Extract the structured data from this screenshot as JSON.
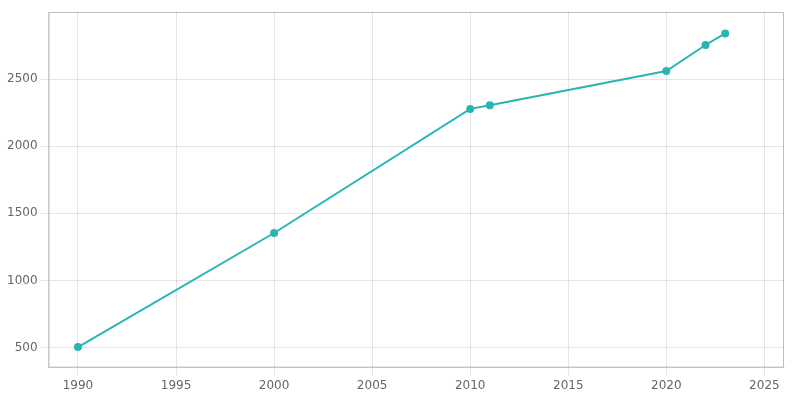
{
  "chart_data": {
    "type": "line",
    "x": [
      1990,
      2000,
      2010,
      2011,
      2020,
      2022,
      2023
    ],
    "values": [
      503,
      1353,
      2278,
      2305,
      2560,
      2754,
      2840
    ],
    "color": "#2ab5b5",
    "marker": "circle",
    "xlim": [
      1988.5,
      2026
    ],
    "ylim": [
      350,
      3000
    ],
    "xticks": [
      1990,
      1995,
      2000,
      2005,
      2010,
      2015,
      2020,
      2025
    ],
    "yticks": [
      500,
      1000,
      1500,
      2000,
      2500
    ],
    "grid": true
  }
}
